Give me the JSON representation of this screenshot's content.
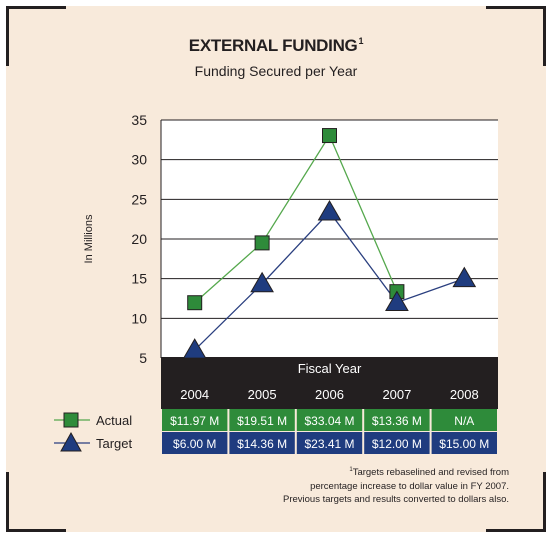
{
  "chart_data": {
    "type": "line",
    "title": "EXTERNAL FUNDING",
    "title_footnote_marker": "1",
    "subtitle": "Funding Secured per Year",
    "ylabel": "In Millions",
    "xlabel": "Fiscal Year",
    "ylim": [
      5,
      35
    ],
    "yticks": [
      5,
      10,
      15,
      20,
      25,
      30,
      35
    ],
    "grid": true,
    "categories": [
      "2004",
      "2005",
      "2006",
      "2007",
      "2008"
    ],
    "series": [
      {
        "name": "Actual",
        "marker": "square",
        "color": "#2e8b3a",
        "values": [
          11.97,
          19.51,
          33.04,
          13.36,
          null
        ],
        "labels": [
          "$11.97 M",
          "$19.51 M",
          "$33.04 M",
          "$13.36 M",
          "N/A"
        ]
      },
      {
        "name": "Target",
        "marker": "triangle",
        "color": "#1f3c7f",
        "values": [
          6.0,
          14.36,
          23.41,
          12.0,
          15.0
        ],
        "labels": [
          "$6.00 M",
          "$14.36 M",
          "$23.41 M",
          "$12.00 M",
          "$15.00 M"
        ]
      }
    ],
    "colors": {
      "background": "#f8eadb",
      "table_header": "#231f20",
      "actual_row": "#2e8b3a",
      "target_row": "#1f3c7f",
      "actual_line": "#55a84d",
      "target_line": "#2a3f7f"
    },
    "footnote": {
      "marker": "1",
      "lines": [
        "Targets rebaselined and revised from",
        "percentage increase to dollar value in FY 2007.",
        "Previous targets and results converted to dollars also."
      ]
    }
  }
}
